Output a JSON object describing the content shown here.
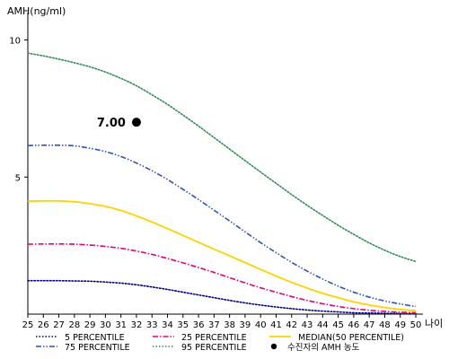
{
  "chart_data": {
    "type": "line",
    "ylabel": "AMH(ng/ml)",
    "xlabel": "나이",
    "xlim": [
      25,
      50
    ],
    "ylim": [
      0,
      11
    ],
    "x": [
      25,
      26,
      27,
      28,
      29,
      30,
      31,
      32,
      33,
      34,
      35,
      36,
      37,
      38,
      39,
      40,
      41,
      42,
      43,
      44,
      45,
      46,
      47,
      48,
      49,
      50
    ],
    "x_ticks": [
      "25",
      "26",
      "27",
      "28",
      "29",
      "30",
      "31",
      "32",
      "33",
      "34",
      "35",
      "36",
      "37",
      "38",
      "39",
      "40",
      "41",
      "42",
      "43",
      "44",
      "45",
      "46",
      "47",
      "48",
      "49",
      "50"
    ],
    "y_ticks": [
      {
        "value": 5,
        "label": "5"
      },
      {
        "value": 10,
        "label": "10"
      }
    ],
    "series": [
      {
        "name": "5 PERCENTILE",
        "color": "#000080",
        "style": "dotted",
        "values": [
          1.22,
          1.22,
          1.22,
          1.21,
          1.2,
          1.17,
          1.13,
          1.07,
          0.99,
          0.9,
          0.8,
          0.7,
          0.6,
          0.5,
          0.41,
          0.33,
          0.26,
          0.2,
          0.15,
          0.11,
          0.08,
          0.05,
          0.04,
          0.03,
          0.02,
          0.02
        ]
      },
      {
        "name": "25 PERCENTILE",
        "color": "#e6007e",
        "style": "dashdot",
        "values": [
          2.55,
          2.56,
          2.56,
          2.55,
          2.52,
          2.47,
          2.4,
          2.3,
          2.18,
          2.03,
          1.87,
          1.7,
          1.52,
          1.33,
          1.14,
          0.96,
          0.8,
          0.64,
          0.5,
          0.38,
          0.28,
          0.2,
          0.14,
          0.1,
          0.07,
          0.05
        ]
      },
      {
        "name": "MEDIAN(50 PERCENTILE)",
        "color": "#ffd200",
        "style": "solid",
        "values": [
          4.12,
          4.13,
          4.13,
          4.1,
          4.03,
          3.93,
          3.78,
          3.58,
          3.36,
          3.12,
          2.87,
          2.62,
          2.37,
          2.13,
          1.88,
          1.63,
          1.39,
          1.16,
          0.95,
          0.76,
          0.6,
          0.45,
          0.33,
          0.24,
          0.17,
          0.12
        ]
      },
      {
        "name": "75 PERCENTILE",
        "color": "#3050c0",
        "style": "dashdotdot",
        "values": [
          6.15,
          6.16,
          6.16,
          6.14,
          6.05,
          5.93,
          5.75,
          5.51,
          5.23,
          4.91,
          4.55,
          4.18,
          3.79,
          3.4,
          3.0,
          2.61,
          2.24,
          1.89,
          1.57,
          1.28,
          1.02,
          0.8,
          0.62,
          0.48,
          0.37,
          0.28
        ]
      },
      {
        "name": "95 PERCENTILE",
        "color": "#2e8b57",
        "style": "dotted",
        "values": [
          9.52,
          9.42,
          9.3,
          9.17,
          9.02,
          8.83,
          8.6,
          8.33,
          8.0,
          7.65,
          7.26,
          6.86,
          6.44,
          6.02,
          5.6,
          5.18,
          4.77,
          4.36,
          3.97,
          3.6,
          3.24,
          2.91,
          2.6,
          2.33,
          2.1,
          1.92
        ]
      }
    ],
    "highlight_point": {
      "name": "수진자의 AMH 농도",
      "x": 32,
      "y": 7.0,
      "label": "7.00",
      "color": "#000000"
    },
    "legend": [
      {
        "ref": "5 PERCENTILE",
        "label": "5 PERCENTILE"
      },
      {
        "ref": "25 PERCENTILE",
        "label": "25 PERCENTILE"
      },
      {
        "ref": "MEDIAN(50 PERCENTILE)",
        "label": "MEDIAN(50 PERCENTILE)"
      },
      {
        "ref": "75 PERCENTILE",
        "label": "75 PERCENTILE"
      },
      {
        "ref": "95 PERCENTILE",
        "label": "95 PERCENTILE"
      },
      {
        "ref": "point",
        "label": "수진자의 AMH 농도"
      }
    ]
  }
}
